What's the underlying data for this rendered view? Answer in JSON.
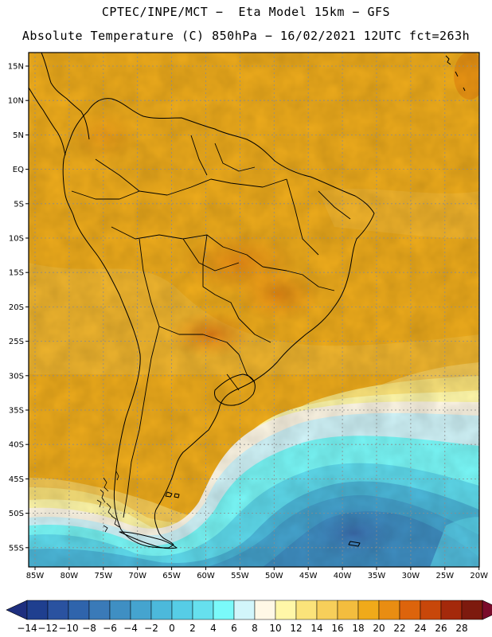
{
  "header": {
    "line1": "CPTEC/INPE/MCT −  Eta Model 15km − GFS",
    "line2": "Absolute Temperature (C) 850hPa − 16/02/2021 12UTC fct=263h"
  },
  "map": {
    "lat_labels": [
      "15N",
      "10N",
      "5N",
      "EQ",
      "5S",
      "10S",
      "15S",
      "20S",
      "25S",
      "30S",
      "35S",
      "40S",
      "45S",
      "50S",
      "55S"
    ],
    "lon_labels": [
      "85W",
      "80W",
      "75W",
      "70W",
      "65W",
      "60W",
      "55W",
      "50W",
      "45W",
      "40W",
      "35W",
      "30W",
      "25W",
      "20W"
    ]
  },
  "colorbar": {
    "labels": [
      "-14",
      "-12",
      "-10",
      "-8",
      "-6",
      "-4",
      "-2",
      "0",
      "2",
      "4",
      "6",
      "8",
      "10",
      "12",
      "14",
      "16",
      "18",
      "20",
      "22",
      "24",
      "26",
      "28"
    ],
    "colors": [
      "#1f3f8f",
      "#2a52a0",
      "#2f64ac",
      "#3a7ab8",
      "#3f8fc3",
      "#45a4cf",
      "#4cb9db",
      "#56cde6",
      "#66e0ee",
      "#7afafa",
      "#d2f6fb",
      "#fff8e6",
      "#fff7a8",
      "#fbe37a",
      "#f7cf5a",
      "#f3bd3e",
      "#f0aa1a",
      "#e98d12",
      "#dd640c",
      "#c8470a",
      "#a4290b",
      "#7d1a0e"
    ],
    "left_tip_color": "#1e2f7f",
    "right_tip_color": "#7a0b2a"
  }
}
